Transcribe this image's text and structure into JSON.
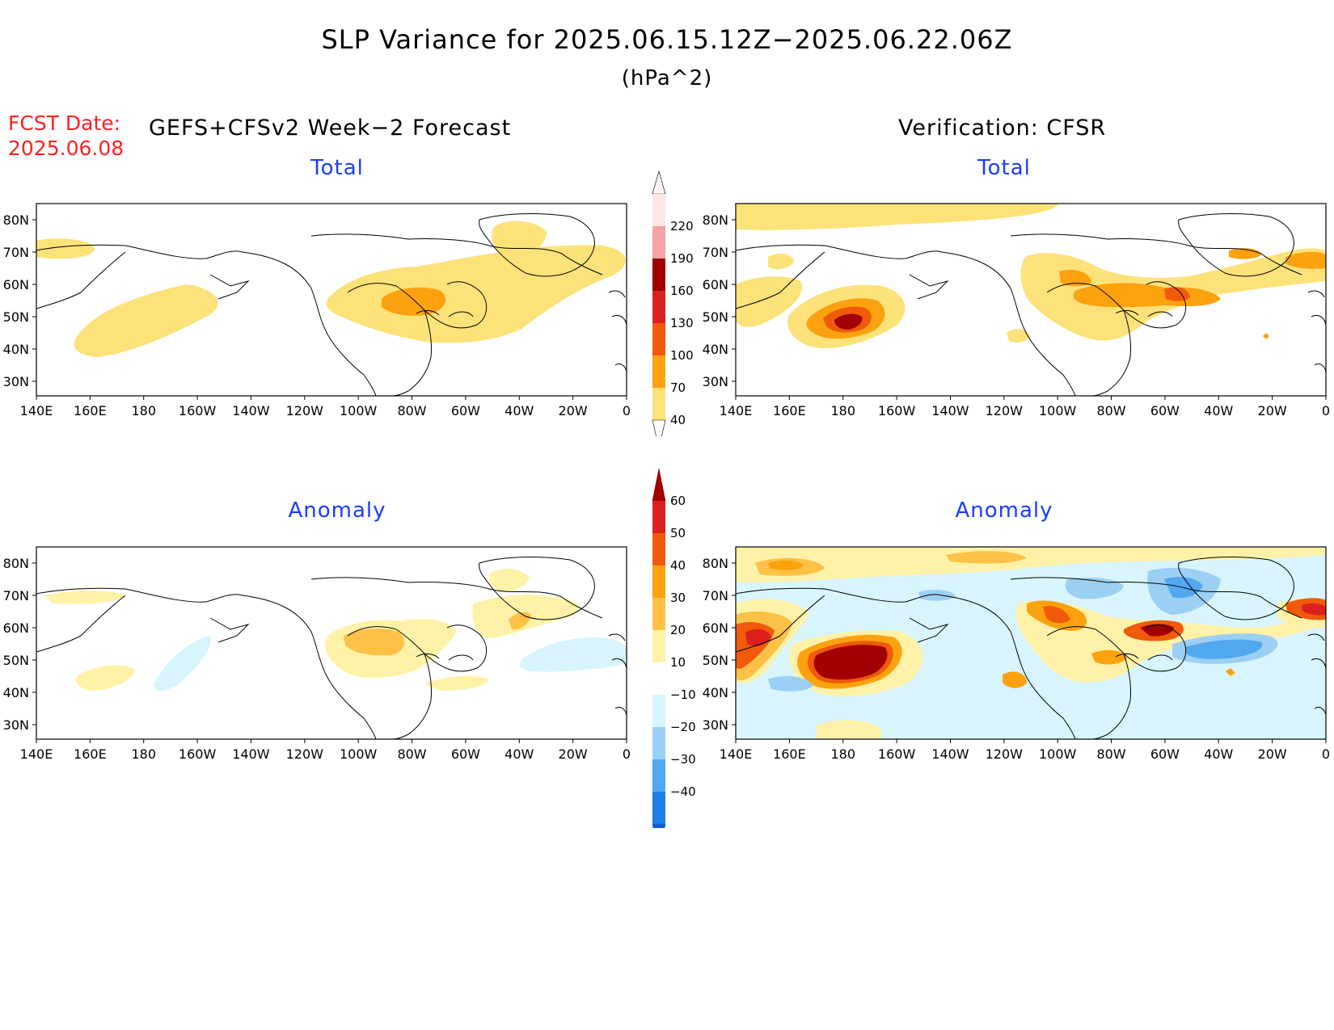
{
  "title": "SLP Variance for 2025.06.15.12Z−2025.06.22.06Z",
  "units": "(hPa^2)",
  "fcst": {
    "label": "FCST Date:",
    "date": "2025.06.08"
  },
  "left_header": "GEFS+CFSv2 Week−2 Forecast",
  "right_header": "Verification: CFSR",
  "panels": [
    {
      "title": "Total"
    },
    {
      "title": "Total"
    },
    {
      "title": "Anomaly"
    },
    {
      "title": "Anomaly"
    }
  ],
  "lat_labels": [
    "80N",
    "70N",
    "60N",
    "50N",
    "40N",
    "30N"
  ],
  "lon_labels": [
    "140E",
    "160E",
    "180",
    "160W",
    "140W",
    "120W",
    "100W",
    "80W",
    "60W",
    "40W",
    "20W",
    "0"
  ],
  "total_colorbar": {
    "levels": [
      "220",
      "190",
      "160",
      "130",
      "100",
      "70",
      "40"
    ],
    "colors": [
      "#ffe6e6",
      "#f4a4a4",
      "#a00000",
      "#dc1f1f",
      "#f05a0a",
      "#fca20f",
      "#fde27a"
    ]
  },
  "anomaly_colorbar": {
    "levels": [
      "60",
      "50",
      "40",
      "30",
      "20",
      "10",
      "−10",
      "−20",
      "−30",
      "−40"
    ],
    "colors": [
      "#a00000",
      "#dc1f1f",
      "#f05a0a",
      "#fca20f",
      "#fdc148",
      "#fff2a8",
      "#ffffff",
      "#d8f4fc",
      "#9ccff4",
      "#52a8ee",
      "#1f7fe6",
      "#0c5fd0"
    ]
  }
}
